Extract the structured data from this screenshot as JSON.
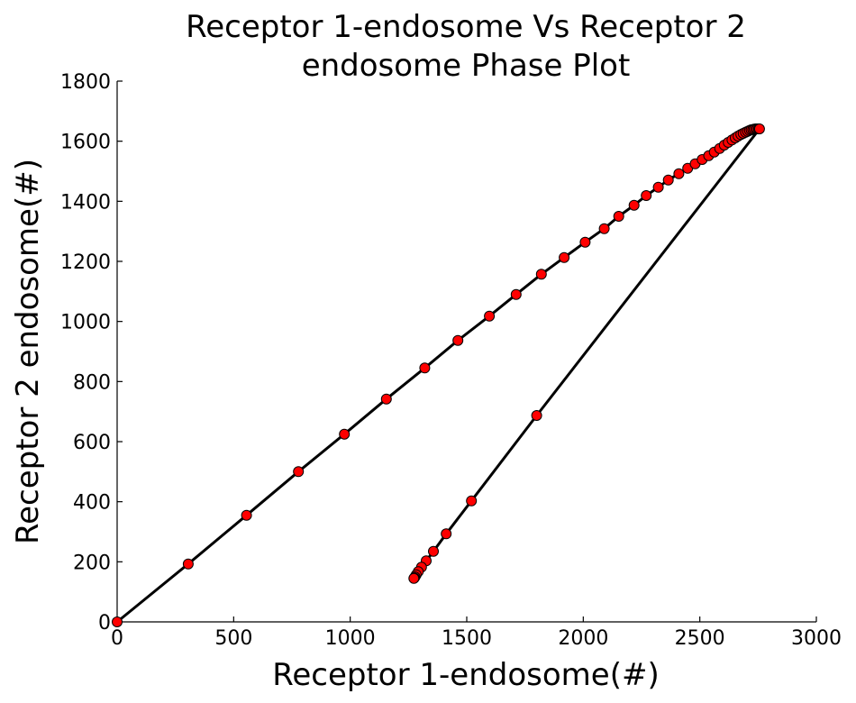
{
  "chart_data": {
    "type": "line",
    "title": [
      "Receptor 1-endosome Vs Receptor 2",
      "endosome Phase Plot"
    ],
    "xlabel": "Receptor 1-endosome(#)",
    "ylabel": "Receptor 2 endosome(#)",
    "xlim": [
      0,
      3000
    ],
    "ylim": [
      0,
      1800
    ],
    "xticks": [
      0,
      500,
      1000,
      1500,
      2000,
      2500,
      3000
    ],
    "yticks": [
      0,
      200,
      400,
      600,
      800,
      1000,
      1200,
      1400,
      1600,
      1800
    ],
    "grid": false,
    "series": [
      {
        "line_color": "#000000",
        "marker": "circle",
        "marker_color": "#ff0000",
        "points": [
          [
            0,
            0
          ],
          [
            305,
            193
          ],
          [
            555,
            355
          ],
          [
            778,
            500
          ],
          [
            975,
            625
          ],
          [
            1155,
            742
          ],
          [
            1320,
            845
          ],
          [
            1462,
            937
          ],
          [
            1597,
            1018
          ],
          [
            1712,
            1090
          ],
          [
            1820,
            1157
          ],
          [
            1918,
            1213
          ],
          [
            2008,
            1264
          ],
          [
            2090,
            1309
          ],
          [
            2152,
            1350
          ],
          [
            2218,
            1387
          ],
          [
            2270,
            1419
          ],
          [
            2322,
            1447
          ],
          [
            2365,
            1471
          ],
          [
            2410,
            1492
          ],
          [
            2448,
            1510
          ],
          [
            2480,
            1525
          ],
          [
            2510,
            1539
          ],
          [
            2538,
            1552
          ],
          [
            2562,
            1564
          ],
          [
            2585,
            1576
          ],
          [
            2605,
            1587
          ],
          [
            2622,
            1596
          ],
          [
            2638,
            1604
          ],
          [
            2652,
            1611
          ],
          [
            2664,
            1617
          ],
          [
            2676,
            1622
          ],
          [
            2686,
            1626
          ],
          [
            2696,
            1630
          ],
          [
            2705,
            1633
          ],
          [
            2713,
            1636
          ],
          [
            2720,
            1638
          ],
          [
            2727,
            1639
          ],
          [
            2733,
            1640
          ],
          [
            2740,
            1641
          ],
          [
            2746,
            1641
          ],
          [
            2752,
            1641
          ],
          [
            2756,
            1641
          ],
          [
            1800,
            687
          ],
          [
            1520,
            403
          ],
          [
            1412,
            293
          ],
          [
            1357,
            235
          ],
          [
            1326,
            203
          ],
          [
            1306,
            182
          ],
          [
            1292,
            167
          ],
          [
            1283,
            157
          ],
          [
            1278,
            150
          ],
          [
            1275,
            146
          ],
          [
            1273,
            145
          ]
        ]
      }
    ]
  }
}
